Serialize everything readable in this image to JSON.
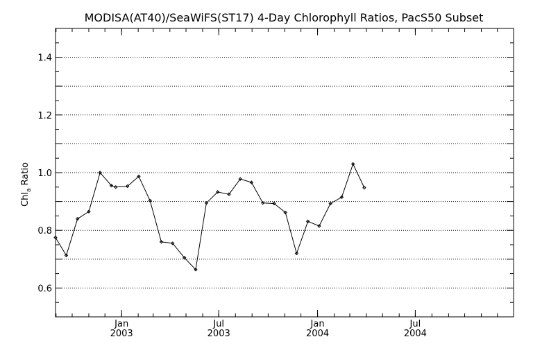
{
  "chart_data": {
    "type": "line",
    "title": "MODISA(AT40)/SeaWiFS(ST17) 4-Day Chlorophyll Ratios, PacS50 Subset",
    "ylabel": "Chl",
    "ylabel_sub": "a",
    "ylabel_suffix": " Ratio",
    "xlabel": "",
    "ylim": [
      0.5,
      1.5
    ],
    "xlim": [
      "2002-08-31",
      "2004-12-31"
    ],
    "grid": true,
    "y_ticks": [
      "0.6",
      "0.8",
      "1.0",
      "1.2",
      "1.4"
    ],
    "x_ticks": [
      {
        "date": "2003-01-01",
        "label": "Jan",
        "year": "2003"
      },
      {
        "date": "2003-07-01",
        "label": "Jul",
        "year": "2003"
      },
      {
        "date": "2004-01-01",
        "label": "Jan",
        "year": "2004"
      },
      {
        "date": "2004-07-01",
        "label": "Jul",
        "year": "2004"
      }
    ],
    "series": [
      {
        "color": "#000000",
        "marker": "diamond",
        "points": [
          {
            "x": "2002-08-31",
            "y": 0.775
          },
          {
            "x": "2002-09-20",
            "y": 0.713
          },
          {
            "x": "2002-10-11",
            "y": 0.84
          },
          {
            "x": "2002-11-01",
            "y": 0.865
          },
          {
            "x": "2002-11-22",
            "y": 1.0
          },
          {
            "x": "2002-12-13",
            "y": 0.955
          },
          {
            "x": "2002-12-21",
            "y": 0.95
          },
          {
            "x": "2003-01-12",
            "y": 0.953
          },
          {
            "x": "2003-02-02",
            "y": 0.987
          },
          {
            "x": "2003-02-23",
            "y": 0.903
          },
          {
            "x": "2003-03-16",
            "y": 0.76
          },
          {
            "x": "2003-04-06",
            "y": 0.755
          },
          {
            "x": "2003-04-28",
            "y": 0.705
          },
          {
            "x": "2003-05-19",
            "y": 0.664
          },
          {
            "x": "2003-06-08",
            "y": 0.895
          },
          {
            "x": "2003-06-29",
            "y": 0.933
          },
          {
            "x": "2003-07-20",
            "y": 0.925
          },
          {
            "x": "2003-08-10",
            "y": 0.978
          },
          {
            "x": "2003-08-31",
            "y": 0.966
          },
          {
            "x": "2003-09-21",
            "y": 0.895
          },
          {
            "x": "2003-10-12",
            "y": 0.893
          },
          {
            "x": "2003-11-02",
            "y": 0.862
          },
          {
            "x": "2003-11-23",
            "y": 0.72
          },
          {
            "x": "2003-12-14",
            "y": 0.831
          },
          {
            "x": "2004-01-04",
            "y": 0.815
          },
          {
            "x": "2004-01-25",
            "y": 0.893
          },
          {
            "x": "2004-02-15",
            "y": 0.915
          },
          {
            "x": "2004-03-07",
            "y": 1.03
          },
          {
            "x": "2004-03-28",
            "y": 0.948
          }
        ]
      }
    ]
  }
}
